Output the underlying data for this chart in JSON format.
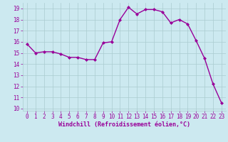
{
  "x": [
    0,
    1,
    2,
    3,
    4,
    5,
    6,
    7,
    8,
    9,
    10,
    11,
    12,
    13,
    14,
    15,
    16,
    17,
    18,
    19,
    20,
    21,
    22,
    23
  ],
  "y": [
    15.8,
    15.0,
    15.1,
    15.1,
    14.9,
    14.6,
    14.6,
    14.4,
    14.4,
    15.9,
    16.0,
    18.0,
    19.1,
    18.5,
    18.9,
    18.9,
    18.7,
    17.7,
    18.0,
    17.6,
    16.1,
    14.5,
    12.2,
    10.5
  ],
  "line_color": "#990099",
  "marker": "D",
  "marker_size": 2,
  "bg_color": "#cce9f0",
  "grid_color": "#aaccd0",
  "xlabel": "Windchill (Refroidissement éolien,°C)",
  "xlabel_color": "#990099",
  "tick_color": "#990099",
  "ylim": [
    9.8,
    19.5
  ],
  "xlim": [
    -0.5,
    23.5
  ],
  "yticks": [
    10,
    11,
    12,
    13,
    14,
    15,
    16,
    17,
    18,
    19
  ],
  "xticks": [
    0,
    1,
    2,
    3,
    4,
    5,
    6,
    7,
    8,
    9,
    10,
    11,
    12,
    13,
    14,
    15,
    16,
    17,
    18,
    19,
    20,
    21,
    22,
    23
  ],
  "tick_fontsize": 5.5,
  "xlabel_fontsize": 6.0,
  "linewidth": 1.0
}
